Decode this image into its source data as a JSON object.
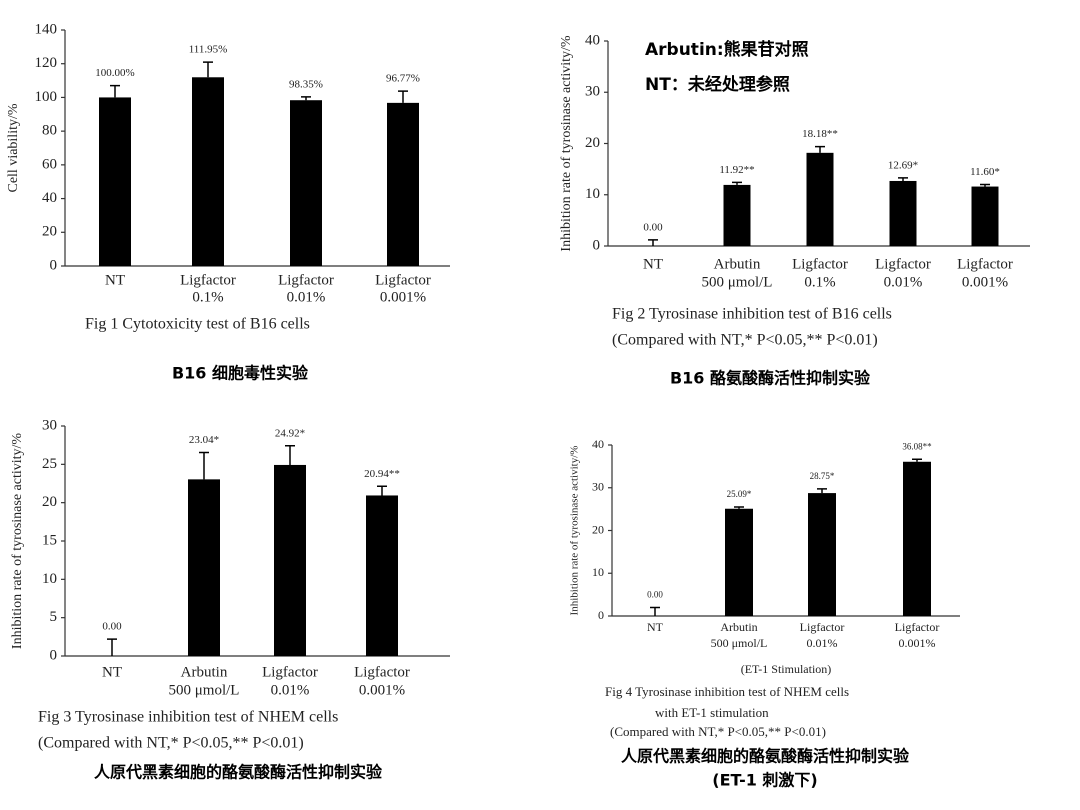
{
  "chart_data": [
    {
      "type": "bar",
      "ylabel": "Cell viability/%",
      "categories": [
        [
          "NT"
        ],
        [
          "Ligfactor",
          "0.1%"
        ],
        [
          "Ligfactor",
          "0.01%"
        ],
        [
          "Ligfactor",
          "0.001%"
        ]
      ],
      "values": [
        100,
        111.95,
        98.35,
        96.77
      ],
      "value_labels": [
        "100.00%",
        "111.95%",
        "98.35%",
        "96.77%"
      ],
      "errors": [
        7,
        9,
        2,
        7
      ],
      "color": "#000000",
      "ylim": [
        0,
        140
      ],
      "yticks": [
        0,
        20,
        40,
        60,
        80,
        100,
        120,
        140
      ],
      "caption": [
        "Fig 1    Cytotoxicity test of B16 cells"
      ],
      "note": [
        "B16 细胞毒性实验"
      ]
    },
    {
      "type": "bar",
      "ylabel": "Inhibition rate of tyrosinase activity/%",
      "categories": [
        [
          "NT"
        ],
        [
          "Arbutin",
          "500 μmol/L"
        ],
        [
          "Ligfactor",
          "0.1%"
        ],
        [
          "Ligfactor",
          "0.01%"
        ],
        [
          "Ligfactor",
          "0.001%"
        ]
      ],
      "values": [
        0,
        11.92,
        18.18,
        12.69,
        11.6
      ],
      "value_labels": [
        "0.00",
        "11.92**",
        "18.18**",
        "12.69*",
        "11.60*"
      ],
      "errors": [
        1.2,
        0.5,
        1.2,
        0.6,
        0.4
      ],
      "color": "#000000",
      "ylim": [
        0,
        40
      ],
      "yticks": [
        0,
        10,
        20,
        30,
        40
      ],
      "annotations": [
        "Arbutin:熊果苷对照",
        "NT：未经处理参照"
      ],
      "caption": [
        "Fig 2    Tyrosinase inhibition test of B16 cells",
        "(Compared with NT,* P<0.05,** P<0.01)"
      ],
      "note": [
        "B16 酪氨酸酶活性抑制实验"
      ]
    },
    {
      "type": "bar",
      "ylabel": "Inhibition rate of tyrosinase activity/%",
      "categories": [
        [
          "NT"
        ],
        [
          "Arbutin",
          "500 μmol/L"
        ],
        [
          "Ligfactor",
          "0.01%"
        ],
        [
          "Ligfactor",
          "0.001%"
        ]
      ],
      "values": [
        0,
        23.04,
        24.92,
        20.94
      ],
      "value_labels": [
        "0.00",
        "23.04*",
        "24.92*",
        "20.94**"
      ],
      "errors": [
        2.2,
        3.5,
        2.5,
        1.2
      ],
      "color": "#000000",
      "ylim": [
        0,
        30
      ],
      "yticks": [
        0,
        5,
        10,
        15,
        20,
        25,
        30
      ],
      "caption": [
        "Fig 3    Tyrosinase inhibition test of NHEM cells",
        "(Compared with NT,* P<0.05,** P<0.01)"
      ],
      "note": [
        "人原代黑素细胞的酪氨酸酶活性抑制实验"
      ]
    },
    {
      "type": "bar",
      "ylabel": "Inhibition rate of tyrosinase activity/%",
      "xlabel": "(ET-1 Stimulation)",
      "categories": [
        [
          "NT"
        ],
        [
          "Arbutin",
          "500 μmol/L"
        ],
        [
          "Ligfactor",
          "0.01%"
        ],
        [
          "Ligfactor",
          "0.001%"
        ]
      ],
      "values": [
        0,
        25.09,
        28.75,
        36.08
      ],
      "value_labels": [
        "0.00",
        "25.09*",
        "28.75*",
        "36.08**"
      ],
      "errors": [
        2,
        0.4,
        1,
        0.6
      ],
      "color": "#000000",
      "ylim": [
        0,
        40
      ],
      "yticks": [
        0,
        10,
        20,
        30,
        40
      ],
      "caption": [
        "Fig 4    Tyrosinase inhibition test of NHEM cells",
        "with ET-1 stimulation",
        "(Compared with NT,* P<0.05,** P<0.01)"
      ],
      "note": [
        "人原代黑素细胞的酪氨酸酶活性抑制实验",
        "(ET-1 刺激下)"
      ]
    }
  ]
}
